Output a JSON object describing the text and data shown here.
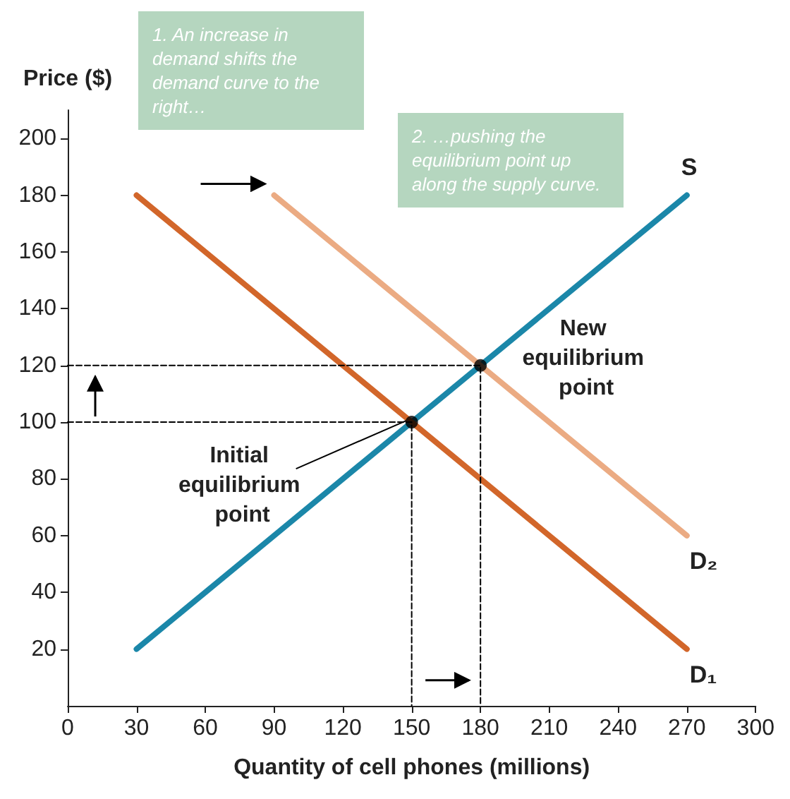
{
  "chart_data": {
    "type": "line",
    "xlabel": "Quantity of cell phones (millions)",
    "ylabel": "Price ($)",
    "xlim": [
      0,
      300
    ],
    "xticks": [
      0,
      30,
      60,
      90,
      120,
      150,
      180,
      210,
      240,
      270,
      300
    ],
    "ylim": [
      0,
      210
    ],
    "yticks": [
      20,
      40,
      60,
      80,
      100,
      120,
      140,
      160,
      180,
      200
    ],
    "grid": false,
    "legend": false,
    "marker": "none",
    "line_style": "solid",
    "series": [
      {
        "name": "S",
        "color": "#1b87a9",
        "x": [
          30,
          270
        ],
        "values": [
          20,
          180
        ]
      },
      {
        "name": "D₁",
        "color": "#d2662a",
        "x": [
          30,
          270
        ],
        "values": [
          180,
          20
        ]
      },
      {
        "name": "D₂",
        "color": "#ebab83",
        "x": [
          90,
          270
        ],
        "values": [
          180,
          60
        ]
      },
      {
        "color": "#000000",
        "line_style": "dashed",
        "x": [
          0,
          150,
          150
        ],
        "values": [
          100,
          100,
          0
        ]
      },
      {
        "color": "#000000",
        "line_style": "dashed",
        "x": [
          0,
          180,
          180
        ],
        "values": [
          120,
          120,
          0
        ]
      },
      {
        "type": "scatter",
        "color": "#000000",
        "marker": "circle",
        "x": [
          150,
          180
        ],
        "values": [
          100,
          120
        ]
      }
    ],
    "annotations": [
      "1. An increase in demand shifts the demand curve to the right…",
      "2. …pushing the equilibrium point up along the supply curve.",
      {
        "text": "Initial equilibrium point",
        "x": 150,
        "y": 100
      },
      {
        "text": "New equilibrium point",
        "x": 180,
        "y": 120
      }
    ]
  }
}
